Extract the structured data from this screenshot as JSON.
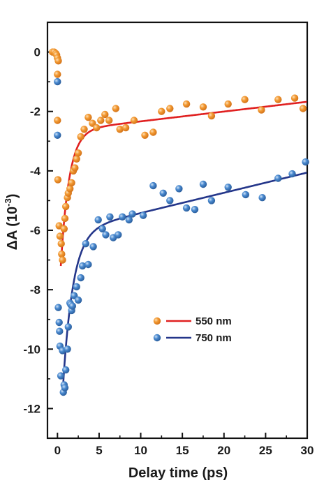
{
  "chart_data": {
    "type": "scatter",
    "xlabel": "Delay time (ps)",
    "ylabel_main": "ΔA (10",
    "ylabel_exp": "-3",
    "ylabel_close": ")",
    "xlim": [
      -1.2,
      30
    ],
    "ylim": [
      -13,
      1
    ],
    "xticks": [
      0,
      5,
      10,
      15,
      20,
      25,
      30
    ],
    "yticks": [
      0,
      -2,
      -4,
      -6,
      -8,
      -10,
      -12
    ],
    "grid": false,
    "legend_position": "lower-center",
    "series": [
      {
        "name": "550 nm",
        "marker_color": "#f0922b",
        "line_color": "#e02020",
        "points": [
          [
            -0.6,
            0.0
          ],
          [
            -0.4,
            0.0
          ],
          [
            -0.2,
            -0.05
          ],
          [
            -0.1,
            -0.1
          ],
          [
            0.0,
            -0.2
          ],
          [
            0.1,
            -0.3
          ],
          [
            0.0,
            -0.75
          ],
          [
            0.0,
            -2.3
          ],
          [
            0.05,
            -4.3
          ],
          [
            0.2,
            -5.85
          ],
          [
            0.3,
            -6.2
          ],
          [
            0.45,
            -6.45
          ],
          [
            0.5,
            -6.8
          ],
          [
            0.6,
            -7.0
          ],
          [
            0.8,
            -5.95
          ],
          [
            0.9,
            -5.6
          ],
          [
            1.0,
            -5.2
          ],
          [
            1.2,
            -4.9
          ],
          [
            1.3,
            -4.75
          ],
          [
            1.5,
            -4.6
          ],
          [
            1.7,
            -4.4
          ],
          [
            1.9,
            -4.0
          ],
          [
            2.1,
            -3.9
          ],
          [
            2.3,
            -3.6
          ],
          [
            2.5,
            -3.4
          ],
          [
            2.8,
            -2.85
          ],
          [
            3.2,
            -2.6
          ],
          [
            3.7,
            -2.2
          ],
          [
            4.2,
            -2.4
          ],
          [
            4.7,
            -2.55
          ],
          [
            5.2,
            -2.3
          ],
          [
            5.7,
            -2.1
          ],
          [
            6.2,
            -2.3
          ],
          [
            7.0,
            -1.9
          ],
          [
            7.5,
            -2.6
          ],
          [
            8.2,
            -2.55
          ],
          [
            9.2,
            -2.3
          ],
          [
            10.5,
            -2.8
          ],
          [
            11.5,
            -2.7
          ],
          [
            12.5,
            -2.0
          ],
          [
            13.5,
            -1.9
          ],
          [
            15.5,
            -1.75
          ],
          [
            17.5,
            -1.85
          ],
          [
            18.5,
            -2.15
          ],
          [
            20.5,
            -1.75
          ],
          [
            22.5,
            -1.6
          ],
          [
            24.5,
            -1.95
          ],
          [
            26.5,
            -1.6
          ],
          [
            28.5,
            -1.55
          ],
          [
            29.5,
            -1.9
          ]
        ],
        "fit_params": {
          "y_inf": -2.65,
          "a": -4.55,
          "tau": 1.0,
          "slope": 0.033,
          "x0": 0.4
        }
      },
      {
        "name": "750 nm",
        "marker_color": "#3d7cc0",
        "line_color": "#24368a",
        "points": [
          [
            0.0,
            -1.0
          ],
          [
            0.0,
            -2.8
          ],
          [
            0.1,
            -8.6
          ],
          [
            0.2,
            -9.1
          ],
          [
            0.25,
            -9.4
          ],
          [
            0.3,
            -9.9
          ],
          [
            0.4,
            -10.9
          ],
          [
            0.6,
            -10.05
          ],
          [
            0.8,
            -11.2
          ],
          [
            0.7,
            -11.45
          ],
          [
            0.9,
            -11.3
          ],
          [
            1.0,
            -10.7
          ],
          [
            1.2,
            -10.0
          ],
          [
            1.3,
            -9.25
          ],
          [
            1.5,
            -8.45
          ],
          [
            1.6,
            -8.5
          ],
          [
            1.7,
            -8.7
          ],
          [
            1.8,
            -8.55
          ],
          [
            2.0,
            -8.2
          ],
          [
            2.3,
            -7.9
          ],
          [
            2.5,
            -8.35
          ],
          [
            2.8,
            -7.6
          ],
          [
            3.0,
            -7.2
          ],
          [
            3.4,
            -6.45
          ],
          [
            3.7,
            -7.15
          ],
          [
            4.3,
            -6.55
          ],
          [
            4.9,
            -5.65
          ],
          [
            5.4,
            -5.95
          ],
          [
            5.8,
            -6.15
          ],
          [
            6.3,
            -5.55
          ],
          [
            6.7,
            -6.25
          ],
          [
            7.3,
            -6.15
          ],
          [
            7.8,
            -5.55
          ],
          [
            8.6,
            -5.65
          ],
          [
            9.0,
            -5.45
          ],
          [
            10.3,
            -5.5
          ],
          [
            11.5,
            -4.5
          ],
          [
            12.7,
            -4.75
          ],
          [
            13.5,
            -5.0
          ],
          [
            14.6,
            -4.6
          ],
          [
            15.5,
            -5.25
          ],
          [
            16.5,
            -5.3
          ],
          [
            17.5,
            -4.45
          ],
          [
            18.5,
            -5.0
          ],
          [
            20.5,
            -4.55
          ],
          [
            22.6,
            -4.8
          ],
          [
            24.6,
            -4.9
          ],
          [
            26.5,
            -4.25
          ],
          [
            28.2,
            -4.1
          ],
          [
            29.8,
            -3.7
          ]
        ],
        "fit_params": {
          "y_inf": -6.05,
          "a": -5.05,
          "tau": 1.2,
          "slope": 0.068,
          "x0": 0.7
        }
      }
    ]
  }
}
